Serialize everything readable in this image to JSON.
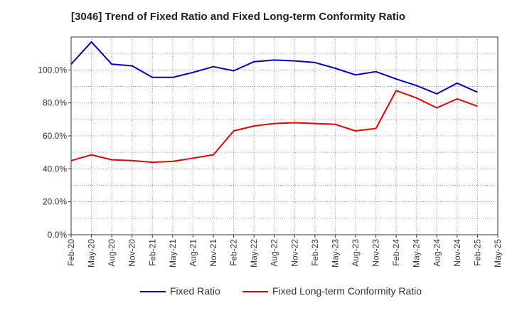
{
  "chart_data": {
    "type": "line",
    "title": "[3046]  Trend of Fixed Ratio and Fixed Long-term Conformity Ratio",
    "xlabel": "",
    "ylabel": "",
    "ylim": [
      0,
      120
    ],
    "yticks": [
      0,
      20,
      40,
      60,
      80,
      100
    ],
    "ytick_labels": [
      "0.0%",
      "20.0%",
      "40.0%",
      "60.0%",
      "80.0%",
      "100.0%"
    ],
    "x": [
      "Feb-20",
      "May-20",
      "Aug-20",
      "Nov-20",
      "Feb-21",
      "May-21",
      "Aug-21",
      "Nov-21",
      "Feb-22",
      "May-22",
      "Aug-22",
      "Nov-22",
      "Feb-23",
      "May-23",
      "Aug-23",
      "Nov-23",
      "Feb-24",
      "May-24",
      "Aug-24",
      "Nov-24",
      "Feb-25",
      "May-25"
    ],
    "grid": true,
    "legend_position": "bottom",
    "series": [
      {
        "name": "Fixed Ratio",
        "color": "#0000cc",
        "values": [
          103.5,
          117.0,
          103.5,
          102.5,
          95.5,
          95.5,
          98.5,
          102.0,
          99.5,
          105.0,
          106.0,
          105.5,
          104.5,
          101.0,
          97.0,
          99.0,
          94.5,
          90.5,
          85.5,
          92.0,
          86.5,
          null
        ]
      },
      {
        "name": "Fixed Long-term Conformity Ratio",
        "color": "#ee0000",
        "values": [
          45.0,
          48.5,
          45.5,
          45.0,
          44.0,
          44.5,
          46.5,
          48.5,
          63.0,
          66.0,
          67.5,
          68.0,
          67.5,
          67.0,
          63.0,
          64.5,
          87.5,
          83.0,
          77.0,
          82.5,
          78.0,
          null
        ]
      }
    ]
  }
}
